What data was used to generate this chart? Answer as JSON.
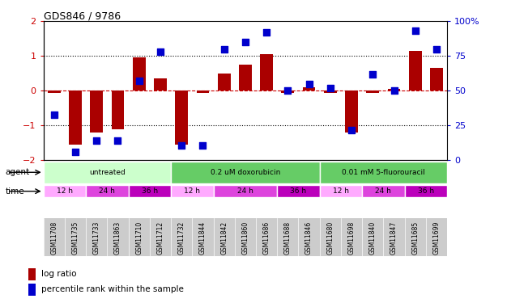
{
  "title": "GDS846 / 9786",
  "samples": [
    "GSM11708",
    "GSM11735",
    "GSM11733",
    "GSM11863",
    "GSM11710",
    "GSM11712",
    "GSM11732",
    "GSM11844",
    "GSM11842",
    "GSM11860",
    "GSM11686",
    "GSM11688",
    "GSM11846",
    "GSM11680",
    "GSM11698",
    "GSM11840",
    "GSM11847",
    "GSM11685",
    "GSM11699"
  ],
  "log_ratio": [
    -0.05,
    -1.55,
    -1.2,
    -1.1,
    0.95,
    0.35,
    -1.55,
    -0.05,
    0.5,
    0.75,
    1.05,
    -0.05,
    0.1,
    -0.05,
    -1.2,
    -0.05,
    0.05,
    1.15,
    0.65
  ],
  "percentile": [
    33,
    6,
    14,
    14,
    57,
    78,
    11,
    11,
    80,
    85,
    92,
    50,
    55,
    52,
    22,
    62,
    50,
    93,
    80
  ],
  "ylim_left": [
    -2,
    2
  ],
  "ylim_right": [
    0,
    100
  ],
  "bar_color": "#aa0000",
  "dot_color": "#0000cc",
  "zero_line_color": "#cc0000",
  "agent_groups": [
    {
      "label": "untreated",
      "start": 0,
      "end": 6,
      "color": "#ccffcc"
    },
    {
      "label": "0.2 uM doxorubicin",
      "start": 6,
      "end": 13,
      "color": "#66cc66"
    },
    {
      "label": "0.01 mM 5-fluorouracil",
      "start": 13,
      "end": 19,
      "color": "#66cc66"
    }
  ],
  "time_groups": [
    {
      "label": "12 h",
      "start": 0,
      "end": 2,
      "color": "#ffaaff"
    },
    {
      "label": "24 h",
      "start": 2,
      "end": 4,
      "color": "#dd44dd"
    },
    {
      "label": "36 h",
      "start": 4,
      "end": 6,
      "color": "#bb00bb"
    },
    {
      "label": "12 h",
      "start": 6,
      "end": 8,
      "color": "#ffaaff"
    },
    {
      "label": "24 h",
      "start": 8,
      "end": 11,
      "color": "#dd44dd"
    },
    {
      "label": "36 h",
      "start": 11,
      "end": 13,
      "color": "#bb00bb"
    },
    {
      "label": "12 h",
      "start": 13,
      "end": 15,
      "color": "#ffaaff"
    },
    {
      "label": "24 h",
      "start": 15,
      "end": 17,
      "color": "#dd44dd"
    },
    {
      "label": "36 h",
      "start": 17,
      "end": 19,
      "color": "#bb00bb"
    }
  ],
  "legend_items": [
    {
      "label": "log ratio",
      "color": "#aa0000"
    },
    {
      "label": "percentile rank within the sample",
      "color": "#0000cc"
    }
  ],
  "tick_bg_color": "#cccccc",
  "bar_width": 0.6,
  "dot_size": 40
}
